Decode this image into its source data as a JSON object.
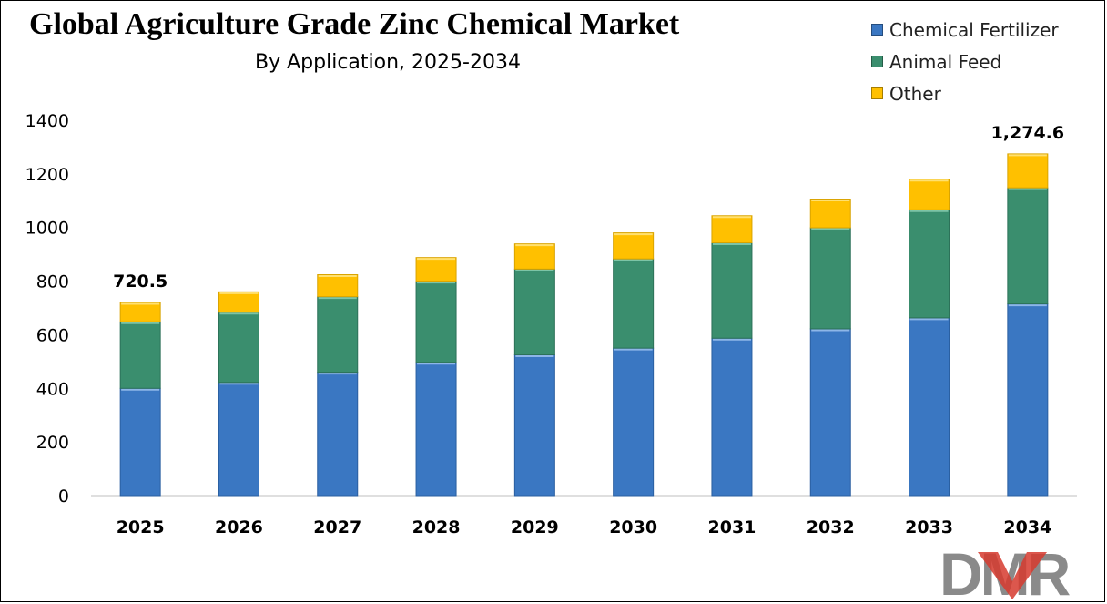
{
  "title": "Global Agriculture Grade Zinc Chemical Market",
  "subtitle": "By Application, 2025-2034",
  "logo_text": "DMR",
  "chart_data": {
    "type": "bar",
    "stacked": true,
    "categories": [
      "2025",
      "2026",
      "2027",
      "2028",
      "2029",
      "2030",
      "2031",
      "2032",
      "2033",
      "2034"
    ],
    "series": [
      {
        "name": "Chemical Fertilizer",
        "color": "#3A77C2",
        "values": [
          400,
          422,
          460,
          497,
          525,
          550,
          587,
          622,
          663,
          715
        ]
      },
      {
        "name": "Animal Feed",
        "color": "#3A8E6E",
        "values": [
          248,
          262,
          282,
          303,
          320,
          333,
          356,
          377,
          403,
          433
        ]
      },
      {
        "name": "Other",
        "color": "#FFC000",
        "values": [
          72.5,
          76,
          82,
          88,
          94,
          97,
          101,
          107,
          114,
          126.6
        ]
      }
    ],
    "annotations": [
      {
        "category": "2025",
        "text": "720.5"
      },
      {
        "category": "2034",
        "text": "1,274.6"
      }
    ],
    "y_ticks": [
      "0",
      "200",
      "400",
      "600",
      "800",
      "1000",
      "1200",
      "1400"
    ],
    "ylim": [
      0,
      1400
    ],
    "xlabel": "",
    "ylabel": "",
    "grid": false,
    "legend_position": "top-right"
  }
}
